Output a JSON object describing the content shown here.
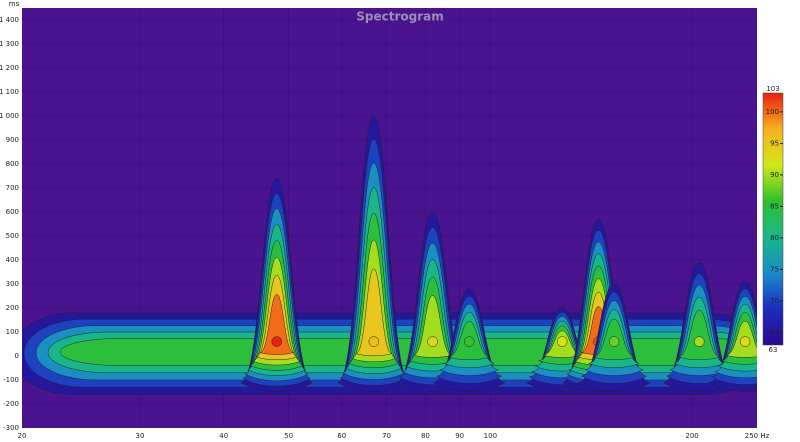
{
  "chart_data": {
    "type": "spectrogram",
    "title": "Spectrogram",
    "y_unit": "ms",
    "xlog": true,
    "xlim": [
      20,
      250
    ],
    "xticks": [
      20,
      30,
      40,
      50,
      60,
      70,
      80,
      90,
      100,
      200,
      {
        "value": 250,
        "label": "250 Hz"
      }
    ],
    "ylim": [
      -300,
      1450
    ],
    "yticks": [
      {
        "value": -300,
        "label": "-300"
      },
      {
        "value": -200,
        "label": "-200"
      },
      {
        "value": -100,
        "label": "-100"
      },
      0,
      100,
      200,
      300,
      400,
      500,
      600,
      700,
      800,
      900,
      {
        "value": 1000,
        "label": "1 000"
      },
      {
        "value": 1100,
        "label": "1 100"
      },
      {
        "value": 1200,
        "label": "1 200"
      },
      {
        "value": 1300,
        "label": "1 300"
      },
      {
        "value": 1400,
        "label": "1 400"
      }
    ],
    "grid": true,
    "background": "#4a1490",
    "clim": [
      63,
      103
    ],
    "cticks": [
      65,
      70,
      75,
      80,
      85,
      90,
      95,
      100
    ],
    "colorscale": [
      "#2a0a8c",
      "#1c2cc0",
      "#1a8cc8",
      "#18b888",
      "#30c030",
      "#d0e818",
      "#f8b020",
      "#e82010"
    ],
    "ridge": {
      "level": 88,
      "top": 180,
      "bottom": -160
    },
    "peaks": {
      "x": [
        48,
        67,
        82,
        93,
        128,
        145,
        153,
        205,
        240
      ],
      "top": [
        740,
        1000,
        600,
        280,
        200,
        570,
        300,
        390,
        310
      ],
      "level": [
        103,
        96,
        93,
        86,
        92,
        101,
        88,
        90,
        93
      ]
    }
  }
}
